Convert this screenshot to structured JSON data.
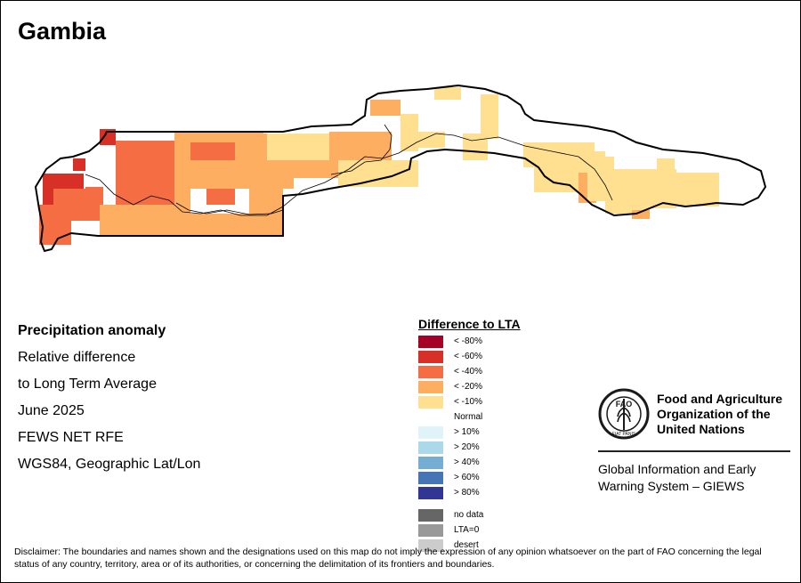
{
  "title": "Gambia",
  "info_lines": [
    "Precipitation anomaly",
    "Relative difference",
    "to Long Term Average",
    "June 2025",
    "FEWS NET RFE",
    "WGS84, Geographic Lat/Lon"
  ],
  "legend": {
    "title": "Difference to LTA",
    "items": [
      {
        "label": "< -80%",
        "color": "#a50026"
      },
      {
        "label": "< -60%",
        "color": "#d73027"
      },
      {
        "label": "< -40%",
        "color": "#f46d43"
      },
      {
        "label": "< -20%",
        "color": "#fdae61"
      },
      {
        "label": "< -10%",
        "color": "#fee090"
      },
      {
        "label": "Normal",
        "color": "#ffffff"
      },
      {
        "label": "> 10%",
        "color": "#e0f3f8"
      },
      {
        "label": "> 20%",
        "color": "#abd9e9"
      },
      {
        "label": "> 40%",
        "color": "#74add1"
      },
      {
        "label": "> 60%",
        "color": "#4575b4"
      },
      {
        "label": "> 80%",
        "color": "#313695"
      }
    ],
    "extra_items": [
      {
        "label": "no data",
        "color": "#666666"
      },
      {
        "label": "LTA=0",
        "color": "#999999"
      },
      {
        "label": "desert",
        "color": "#cccccc"
      }
    ]
  },
  "fao": {
    "emblem_text": "FAO",
    "emblem_motto": "FIAT PANIS",
    "name_lines": [
      "Food and Agriculture",
      "Organization of the",
      "United Nations"
    ],
    "giews_lines": [
      "Global Information and Early",
      "Warning System – GIEWS"
    ]
  },
  "disclaimer": "Disclaimer: The boundaries and names shown and the designations used on this map do not imply the expression of any opinion whatsoever on the part of FAO concerning the legal status of any country, territory, area or of its authorities, or concerning the delimitation of its frontiers and boundaries."
}
